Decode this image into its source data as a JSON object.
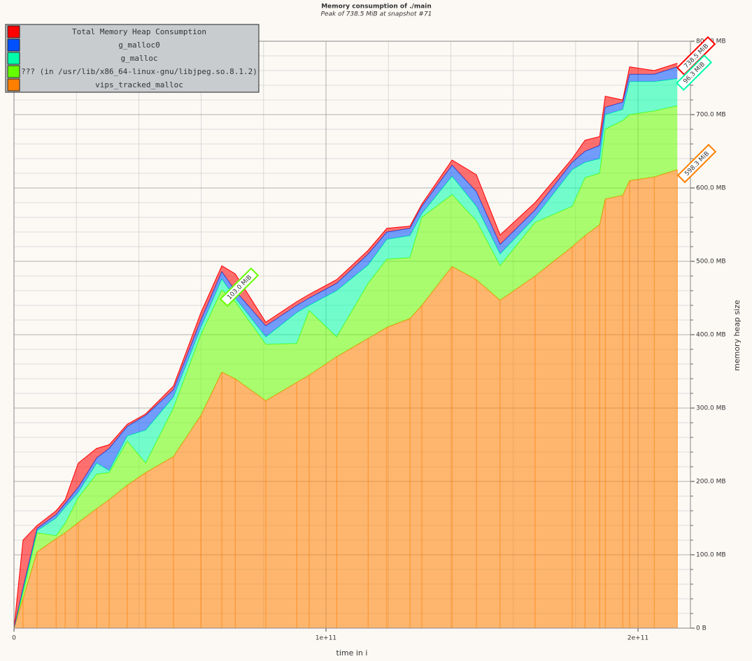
{
  "chart_data": {
    "type": "stacked-area",
    "title": "Memory consumption of ./main",
    "subtitle": "Peak of 738.5 MiB at snapshot #71",
    "x_label": "time in i",
    "y_label": "memory heap size",
    "x": [
      0,
      2900000000.0,
      7400000000.0,
      13500000000.0,
      16400000000.0,
      20600000000.0,
      26500000000.0,
      30500000000.0,
      36300000000.0,
      42200000000.0,
      51100000000.0,
      59900000000.0,
      66600000000.0,
      70900000000.0,
      80700000000.0,
      90600000000.0,
      94600000000.0,
      103400000000.0,
      113500000000.0,
      119500000000.0,
      126900000000.0,
      130700000000.0,
      140400000000.0,
      148200000000.0,
      155800000000.0,
      167000000000.0,
      178900000000.0,
      183000000000.0,
      187700000000.0,
      189500000000.0,
      195100000000.0,
      197300000000.0,
      205200000000.0,
      212600000000.0
    ],
    "series": [
      {
        "name": "vips_tracked_malloc",
        "color": "#ff7f00",
        "values": [
          0,
          40,
          104,
          122,
          130,
          144,
          163,
          175,
          195,
          212,
          234,
          290,
          349,
          340,
          310,
          335,
          345,
          370,
          395,
          410,
          422,
          440,
          493,
          475,
          447,
          480,
          520,
          535,
          550,
          585,
          590,
          610,
          615,
          625
        ]
      },
      {
        "name": "??? (in /usr/lib/x86_64-linux-gnu/libjpeg.so.8.1.2)",
        "color": "#66ff00",
        "values": [
          0,
          8,
          26,
          4,
          13,
          34,
          47,
          37,
          60,
          13,
          66,
          110,
          112,
          105,
          77,
          53,
          88,
          27,
          75,
          93,
          83,
          120,
          98,
          80,
          47,
          73,
          55,
          79,
          70,
          95,
          102,
          90,
          90,
          87
        ]
      },
      {
        "name": "g_malloc",
        "color": "#00ffaa",
        "values": [
          0,
          4,
          3,
          24,
          22,
          7,
          15,
          3,
          7,
          45,
          15,
          10,
          15,
          5,
          10,
          42,
          7,
          63,
          25,
          27,
          30,
          5,
          25,
          20,
          16,
          7,
          50,
          21,
          20,
          20,
          15,
          45,
          40,
          37
        ]
      },
      {
        "name": "g_malloc0",
        "color": "#0050ff",
        "values": [
          0,
          3,
          3,
          5,
          5,
          7,
          7,
          30,
          13,
          20,
          10,
          10,
          10,
          10,
          15,
          10,
          10,
          10,
          15,
          10,
          10,
          10,
          15,
          20,
          13,
          10,
          10,
          15,
          18,
          10,
          10,
          10,
          10,
          16
        ]
      },
      {
        "name": "Total Memory Heap Consumption",
        "color": "#ff0000",
        "values": [
          0,
          65,
          4,
          5,
          5,
          33,
          13,
          5,
          3,
          2,
          5,
          10,
          8,
          23,
          5,
          5,
          5,
          5,
          5,
          5,
          3,
          3,
          7,
          23,
          13,
          10,
          5,
          15,
          12,
          15,
          3,
          10,
          5,
          5
        ]
      }
    ],
    "xlim": [
      0,
      216800000000.0
    ],
    "ylim": [
      0,
      800
    ],
    "xticks": [
      0,
      {
        "value": 100000000000.0,
        "label": "1e+11"
      },
      {
        "value": 200000000000.0,
        "label": "2e+11"
      }
    ],
    "yticks": [
      {
        "value": 0,
        "label": "0 B"
      },
      {
        "value": 100,
        "label": "100.0 MB"
      },
      {
        "value": 200,
        "label": "200.0 MB"
      },
      {
        "value": 300,
        "label": "300.0 MB"
      },
      {
        "value": 400,
        "label": "400.0 MB"
      },
      {
        "value": 500,
        "label": "500.0 MB"
      },
      {
        "value": 600,
        "label": "600.0 MB"
      },
      {
        "value": 700,
        "label": "700.0 MB"
      },
      {
        "value": 800,
        "label": "800.0 MB"
      }
    ],
    "grid": true,
    "legend": "top-left",
    "annotations": [
      {
        "text": "738.5 MiB",
        "color": "#ff0000"
      },
      {
        "text": "96.3 MiB",
        "color": "#00ffaa"
      },
      {
        "text": "103.0 MiB",
        "color": "#66ff00"
      },
      {
        "text": "598.3 MiB",
        "color": "#ff7f00"
      }
    ]
  }
}
